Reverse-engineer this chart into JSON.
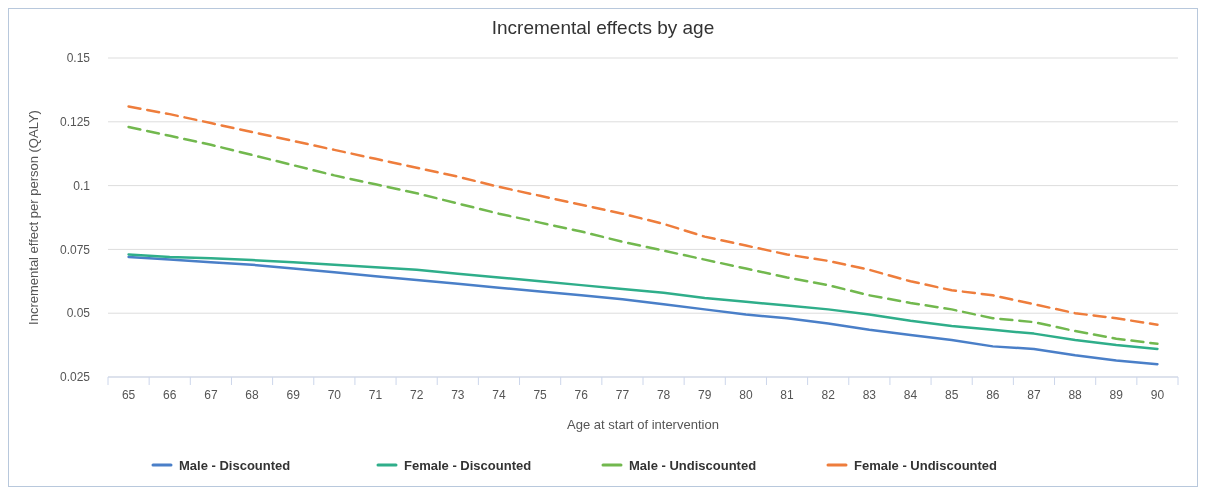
{
  "chart_data": {
    "type": "line",
    "title": "Incremental effects by age",
    "xlabel": "Age at start of intervention",
    "ylabel": "Incremental effect per person (QALY)",
    "categories": [
      "65",
      "66",
      "67",
      "68",
      "69",
      "70",
      "71",
      "72",
      "73",
      "74",
      "75",
      "76",
      "77",
      "78",
      "79",
      "80",
      "81",
      "82",
      "83",
      "84",
      "85",
      "86",
      "87",
      "88",
      "89",
      "90"
    ],
    "ylim": [
      0.025,
      0.15
    ],
    "yticks": [
      0.025,
      0.05,
      0.075,
      0.1,
      0.125,
      0.15
    ],
    "grid": "y",
    "legend": "bottom",
    "marker": "none",
    "series": [
      {
        "name": "Male - Discounted",
        "color": "#4a7fc8",
        "line_style": "solid",
        "values": [
          0.072,
          0.071,
          0.07,
          0.069,
          0.0675,
          0.066,
          0.0645,
          0.063,
          0.0615,
          0.06,
          0.0585,
          0.057,
          0.0555,
          0.0535,
          0.0515,
          0.0495,
          0.048,
          0.046,
          0.0435,
          0.0415,
          0.0395,
          0.037,
          0.036,
          0.0335,
          0.0315,
          0.03
        ]
      },
      {
        "name": "Female - Discounted",
        "color": "#2fae8a",
        "line_style": "solid",
        "values": [
          0.073,
          0.072,
          0.0715,
          0.0708,
          0.07,
          0.069,
          0.068,
          0.067,
          0.0655,
          0.064,
          0.0625,
          0.061,
          0.0595,
          0.058,
          0.056,
          0.0545,
          0.053,
          0.0515,
          0.0495,
          0.047,
          0.045,
          0.0435,
          0.042,
          0.0395,
          0.0375,
          0.036
        ]
      },
      {
        "name": "Male - Undiscounted",
        "color": "#72b84e",
        "line_style": "dashed",
        "values": [
          0.123,
          0.1195,
          0.116,
          0.112,
          0.108,
          0.104,
          0.1005,
          0.097,
          0.093,
          0.089,
          0.0855,
          0.082,
          0.078,
          0.0745,
          0.071,
          0.0675,
          0.064,
          0.061,
          0.057,
          0.054,
          0.0515,
          0.048,
          0.0465,
          0.043,
          0.04,
          0.038
        ]
      },
      {
        "name": "Female - Undiscounted",
        "color": "#ee7d3c",
        "line_style": "dashed",
        "values": [
          0.131,
          0.128,
          0.1245,
          0.121,
          0.1175,
          0.114,
          0.1105,
          0.107,
          0.1035,
          0.0995,
          0.096,
          0.0925,
          0.089,
          0.085,
          0.08,
          0.0765,
          0.073,
          0.0705,
          0.067,
          0.0625,
          0.059,
          0.057,
          0.0535,
          0.05,
          0.048,
          0.0455
        ]
      }
    ]
  }
}
